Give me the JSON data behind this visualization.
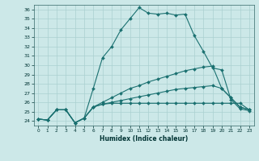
{
  "xlabel": "Humidex (Indice chaleur)",
  "ylabel": "",
  "bg_color": "#cce8e8",
  "line_color": "#1a7070",
  "grid_color": "#aad0d0",
  "xlim": [
    -0.5,
    23.5
  ],
  "ylim": [
    23.5,
    36.5
  ],
  "yticks": [
    24,
    25,
    26,
    27,
    28,
    29,
    30,
    31,
    32,
    33,
    34,
    35,
    36
  ],
  "xticks": [
    0,
    1,
    2,
    3,
    4,
    5,
    6,
    7,
    8,
    9,
    10,
    11,
    12,
    13,
    14,
    15,
    16,
    17,
    18,
    19,
    20,
    21,
    22,
    23
  ],
  "series": [
    [
      24.2,
      24.1,
      25.2,
      25.2,
      23.8,
      24.3,
      27.5,
      30.8,
      32.0,
      33.8,
      35.0,
      36.2,
      35.6,
      35.5,
      35.6,
      35.4,
      35.5,
      33.2,
      31.5,
      29.7,
      29.5,
      26.3,
      25.3,
      25.1
    ],
    [
      24.2,
      24.1,
      25.2,
      25.2,
      23.8,
      24.3,
      25.5,
      26.0,
      26.5,
      27.0,
      27.5,
      27.8,
      28.2,
      28.5,
      28.8,
      29.1,
      29.4,
      29.6,
      29.8,
      29.9,
      27.5,
      26.5,
      25.5,
      25.2
    ],
    [
      24.2,
      24.1,
      25.2,
      25.2,
      23.8,
      24.3,
      25.5,
      25.8,
      26.0,
      26.2,
      26.4,
      26.6,
      26.8,
      27.0,
      27.2,
      27.4,
      27.5,
      27.6,
      27.7,
      27.8,
      27.5,
      26.5,
      25.5,
      25.2
    ],
    [
      24.2,
      24.1,
      25.2,
      25.2,
      23.8,
      24.3,
      25.5,
      25.8,
      25.9,
      25.9,
      25.9,
      25.9,
      25.9,
      25.9,
      25.9,
      25.9,
      25.9,
      25.9,
      25.9,
      25.9,
      25.9,
      25.9,
      25.9,
      25.2
    ]
  ]
}
